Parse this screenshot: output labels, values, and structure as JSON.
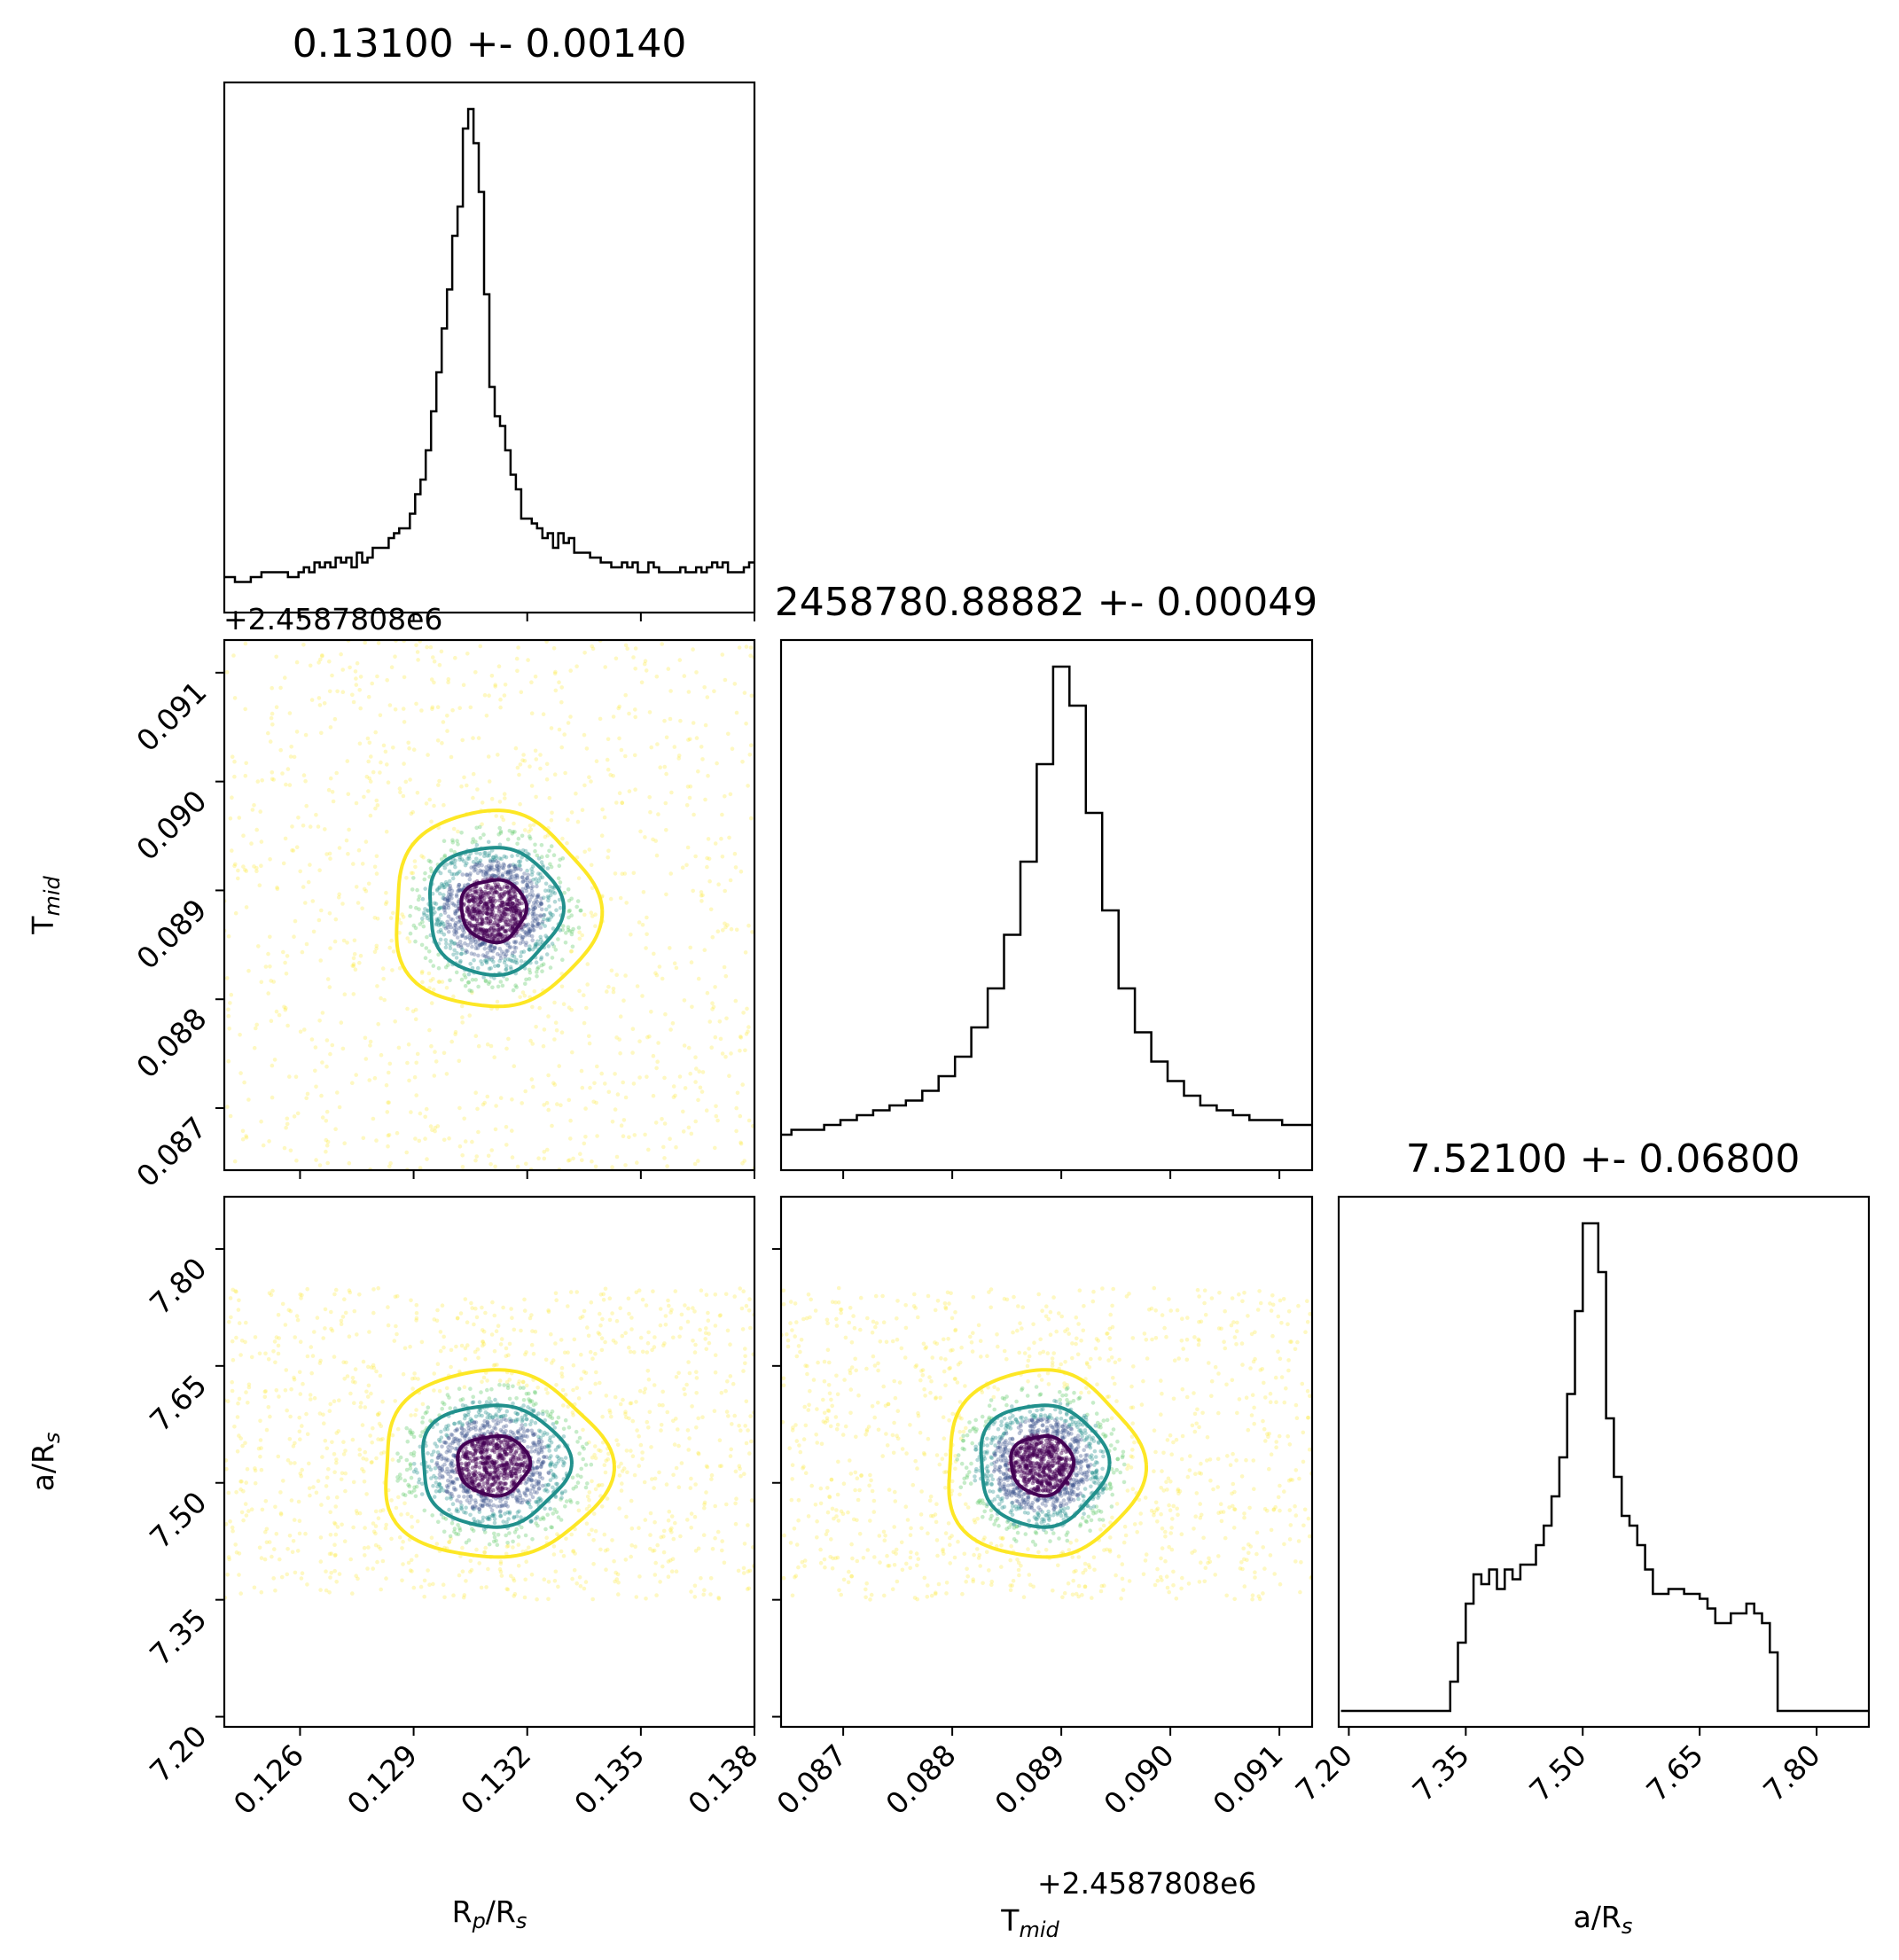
{
  "chart_data": {
    "type": "corner",
    "parameters": [
      {
        "key": "rprs",
        "label": "R",
        "label_sub": "p",
        "label_rest": "/R",
        "label_sub2": "s"
      },
      {
        "key": "tmid",
        "label": "T",
        "label_sub": "mid",
        "label_rest": "",
        "label_sub2": ""
      },
      {
        "key": "ars",
        "label": "a/R",
        "label_sub": "s",
        "label_rest": "",
        "label_sub2": ""
      }
    ],
    "titles": [
      "0.13100 +- 0.00140",
      "2458780.88882 +- 0.00049",
      "7.52100 +- 0.06800"
    ],
    "offset_text": "+2.4587808e6",
    "ranges": {
      "rprs": [
        0.124,
        0.138
      ],
      "tmid": [
        0.08643,
        0.0913
      ],
      "ars": [
        7.187,
        7.867
      ]
    },
    "ticks": {
      "rprs": [
        "0.126",
        "0.129",
        "0.132",
        "0.135",
        "0.138"
      ],
      "tmid": [
        "0.087",
        "0.088",
        "0.089",
        "0.090",
        "0.091"
      ],
      "ars": [
        "7.20",
        "7.35",
        "7.50",
        "7.65",
        "7.80"
      ]
    },
    "tick_values": {
      "rprs": [
        0.126,
        0.129,
        0.132,
        0.135,
        0.138
      ],
      "tmid": [
        0.087,
        0.088,
        0.089,
        0.09,
        0.091
      ],
      "ars": [
        7.2,
        7.35,
        7.5,
        7.65,
        7.8
      ]
    },
    "histograms": {
      "rprs": {
        "centers": [
          0.12407,
          0.12421,
          0.12435,
          0.12449,
          0.12463,
          0.12477,
          0.12491,
          0.12505,
          0.12519,
          0.12533,
          0.12547,
          0.12561,
          0.12575,
          0.12589,
          0.12603,
          0.12617,
          0.12631,
          0.12645,
          0.12659,
          0.12673,
          0.12687,
          0.12701,
          0.12715,
          0.12729,
          0.12743,
          0.12757,
          0.12771,
          0.12785,
          0.12799,
          0.12813,
          0.12827,
          0.12841,
          0.12855,
          0.12869,
          0.12883,
          0.12897,
          0.12911,
          0.12925,
          0.12939,
          0.12953,
          0.12967,
          0.12981,
          0.12995,
          0.13009,
          0.13023,
          0.13037,
          0.13051,
          0.13065,
          0.13079,
          0.13093,
          0.13107,
          0.13121,
          0.13135,
          0.13149,
          0.13163,
          0.13177,
          0.13191,
          0.13205,
          0.13219,
          0.13233,
          0.13247,
          0.13261,
          0.13275,
          0.13289,
          0.13303,
          0.13317,
          0.13331,
          0.13345,
          0.13359,
          0.13373,
          0.13387,
          0.13401,
          0.13415,
          0.13429,
          0.13443,
          0.13457,
          0.13471,
          0.13485,
          0.13499,
          0.13513,
          0.13527,
          0.13541,
          0.13555,
          0.13569,
          0.13583,
          0.13597,
          0.13611,
          0.13625,
          0.13639,
          0.13653,
          0.13667,
          0.13681,
          0.13695,
          0.13709,
          0.13723,
          0.13737,
          0.13751,
          0.13765,
          0.13779,
          0.13793
        ],
        "counts": [
          4,
          4,
          3,
          3,
          3,
          4,
          4,
          5,
          5,
          5,
          5,
          5,
          4,
          4,
          5,
          6,
          5,
          7,
          6,
          7,
          6,
          8,
          7,
          8,
          6,
          9,
          7,
          8,
          10,
          10,
          10,
          12,
          13,
          14,
          14,
          17,
          21,
          24,
          30,
          38,
          46,
          55,
          63,
          74,
          80,
          96,
          100,
          93,
          83,
          62,
          43,
          37,
          35,
          30,
          25,
          22,
          16,
          16,
          15,
          14,
          12,
          13,
          10,
          13,
          11,
          12,
          9,
          9,
          9,
          8,
          8,
          7,
          7,
          6,
          6,
          7,
          6,
          7,
          5,
          5,
          7,
          6,
          5,
          5,
          5,
          5,
          6,
          5,
          5,
          6,
          5,
          6,
          7,
          6,
          7,
          5,
          5,
          5,
          6,
          7
        ]
      },
      "tmid": {
        "centers": [
          0.08645,
          0.0866,
          0.08675,
          0.0869,
          0.08705,
          0.0872,
          0.08735,
          0.0875,
          0.08765,
          0.0878,
          0.08795,
          0.0881,
          0.08825,
          0.0884,
          0.08855,
          0.0887,
          0.08885,
          0.089,
          0.08915,
          0.0893,
          0.08945,
          0.0896,
          0.08975,
          0.0899,
          0.09005,
          0.0902,
          0.09035,
          0.0905,
          0.09065,
          0.0908,
          0.09095,
          0.0911,
          0.09125
        ],
        "counts": [
          4,
          5,
          5,
          6,
          7,
          8,
          9,
          10,
          11,
          13,
          16,
          20,
          26,
          34,
          45,
          60,
          80,
          100,
          92,
          70,
          50,
          34,
          25,
          19,
          15,
          12,
          10,
          9,
          8,
          7,
          7,
          6,
          6
        ]
      },
      "ars": {
        "centers": [
          7.195,
          7.205,
          7.215,
          7.225,
          7.235,
          7.245,
          7.255,
          7.265,
          7.275,
          7.285,
          7.295,
          7.305,
          7.315,
          7.325,
          7.335,
          7.345,
          7.355,
          7.365,
          7.375,
          7.385,
          7.395,
          7.405,
          7.415,
          7.425,
          7.435,
          7.445,
          7.455,
          7.465,
          7.475,
          7.485,
          7.495,
          7.505,
          7.515,
          7.525,
          7.535,
          7.545,
          7.555,
          7.565,
          7.575,
          7.585,
          7.595,
          7.605,
          7.615,
          7.625,
          7.635,
          7.645,
          7.655,
          7.665,
          7.675,
          7.685,
          7.695,
          7.705,
          7.715,
          7.725,
          7.735,
          7.745,
          7.755,
          7.765,
          7.775,
          7.785,
          7.795,
          7.805,
          7.815,
          7.825,
          7.835,
          7.845,
          7.855,
          7.865
        ],
        "counts": [
          0,
          0,
          0,
          0,
          0,
          0,
          0,
          0,
          0,
          0,
          0,
          0,
          0,
          0,
          6,
          14,
          22,
          28,
          26,
          29,
          25,
          29,
          27,
          30,
          30,
          34,
          38,
          44,
          52,
          65,
          82,
          100,
          100,
          90,
          60,
          48,
          40,
          38,
          34,
          29,
          24,
          24,
          25,
          25,
          24,
          24,
          23,
          21,
          18,
          18,
          20,
          20,
          22,
          20,
          18,
          12,
          0,
          0,
          0,
          0,
          0,
          0,
          0,
          0,
          0,
          0,
          0,
          0
        ]
      }
    },
    "contours": {
      "rprs_tmid": {
        "center": [
          0.1311,
          0.08882
        ],
        "sigma": [
          0.0009,
          0.0003
        ]
      },
      "rprs_ars": {
        "center": [
          0.1311,
          7.523
        ],
        "sigma": [
          0.001,
          0.04
        ]
      },
      "tmid_ars": {
        "center": [
          0.08882,
          7.523
        ],
        "sigma": [
          0.0003,
          0.04
        ]
      }
    },
    "contour_colors": [
      "#440154",
      "#21908c",
      "#fde725"
    ],
    "scatter_colors": [
      "#440154",
      "#3b528b",
      "#21908c",
      "#5dc963",
      "#fde725"
    ],
    "grid": false,
    "legend": "none"
  }
}
